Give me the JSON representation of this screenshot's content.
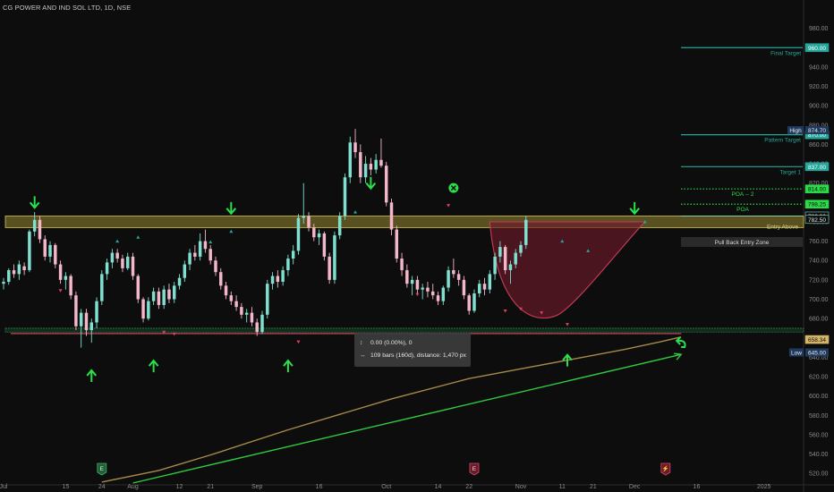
{
  "title": "CG POWER AND IND SOL LTD, 1D, NSE",
  "colors": {
    "bg": "#0d0d0d",
    "up": "#7fe0cf",
    "down": "#f4b6c9",
    "ma": "#a58a4a",
    "trend": "#2ecc40",
    "resistance": "#b8a53a",
    "support": "#1f5f36",
    "cup": "#6b1a2a",
    "arrow": "#29e04a",
    "target": "#26a69a",
    "poa": "#2bd94a"
  },
  "measure": {
    "line1": "0.00 (0.00%), 0",
    "line2": "109 bars (160d), distance: 1,470 px",
    "icon1": "measure-range-icon",
    "icon2": "measure-bars-icon"
  },
  "chart_data": {
    "type": "candlestick",
    "title": "CG POWER AND IND SOL LTD, 1D, NSE",
    "y_range": [
      510,
      1000
    ],
    "y_ticks": [
      520,
      540,
      560,
      580,
      600,
      620,
      640,
      660,
      680,
      700,
      720,
      740,
      760,
      780,
      800,
      820,
      840,
      860,
      880,
      900,
      920,
      940,
      960,
      980
    ],
    "x_labels": [
      "Jul",
      "15",
      "24",
      "Aug",
      "12",
      "21",
      "Sep",
      "16",
      "Oct",
      "14",
      "22",
      "Nov",
      "11",
      "21",
      "Dec",
      "16",
      "2025"
    ],
    "x_label_bars": [
      0,
      12,
      19,
      25,
      34,
      40,
      49,
      61,
      74,
      84,
      90,
      100,
      108,
      114,
      122,
      134,
      147
    ],
    "candle_start": 4,
    "candle_step": 5.78,
    "candles": [
      [
        716,
        722,
        710,
        718
      ],
      [
        718,
        732,
        715,
        730
      ],
      [
        730,
        736,
        722,
        726
      ],
      [
        726,
        740,
        720,
        736
      ],
      [
        734,
        738,
        725,
        730
      ],
      [
        730,
        772,
        728,
        770
      ],
      [
        770,
        790,
        765,
        782
      ],
      [
        782,
        786,
        758,
        762
      ],
      [
        762,
        766,
        740,
        744
      ],
      [
        744,
        760,
        738,
        756
      ],
      [
        756,
        758,
        732,
        736
      ],
      [
        736,
        740,
        716,
        720
      ],
      [
        720,
        728,
        710,
        724
      ],
      [
        724,
        726,
        700,
        704
      ],
      [
        704,
        708,
        668,
        672
      ],
      [
        672,
        690,
        650,
        686
      ],
      [
        686,
        690,
        662,
        668
      ],
      [
        668,
        680,
        655,
        676
      ],
      [
        676,
        702,
        670,
        698
      ],
      [
        698,
        730,
        694,
        726
      ],
      [
        726,
        742,
        720,
        738
      ],
      [
        738,
        752,
        732,
        748
      ],
      [
        748,
        752,
        738,
        742
      ],
      [
        742,
        746,
        728,
        732
      ],
      [
        732,
        748,
        730,
        744
      ],
      [
        744,
        748,
        720,
        724
      ],
      [
        724,
        726,
        696,
        700
      ],
      [
        700,
        702,
        676,
        680
      ],
      [
        680,
        702,
        678,
        698
      ],
      [
        698,
        712,
        694,
        708
      ],
      [
        708,
        712,
        690,
        694
      ],
      [
        694,
        714,
        690,
        710
      ],
      [
        710,
        716,
        696,
        700
      ],
      [
        700,
        718,
        696,
        714
      ],
      [
        714,
        726,
        710,
        722
      ],
      [
        722,
        740,
        718,
        736
      ],
      [
        736,
        752,
        730,
        748
      ],
      [
        748,
        756,
        740,
        744
      ],
      [
        744,
        768,
        740,
        760
      ],
      [
        760,
        772,
        748,
        752
      ],
      [
        752,
        756,
        736,
        740
      ],
      [
        740,
        744,
        724,
        728
      ],
      [
        728,
        732,
        710,
        714
      ],
      [
        714,
        718,
        700,
        704
      ],
      [
        704,
        708,
        694,
        698
      ],
      [
        698,
        704,
        688,
        692
      ],
      [
        692,
        696,
        680,
        684
      ],
      [
        684,
        690,
        676,
        686
      ],
      [
        686,
        692,
        672,
        676
      ],
      [
        676,
        680,
        662,
        666
      ],
      [
        666,
        688,
        664,
        684
      ],
      [
        684,
        720,
        680,
        716
      ],
      [
        716,
        728,
        710,
        724
      ],
      [
        724,
        730,
        712,
        718
      ],
      [
        718,
        734,
        714,
        730
      ],
      [
        730,
        746,
        724,
        742
      ],
      [
        742,
        756,
        736,
        750
      ],
      [
        750,
        788,
        746,
        784
      ],
      [
        784,
        820,
        778,
        786
      ],
      [
        786,
        790,
        770,
        774
      ],
      [
        774,
        778,
        760,
        764
      ],
      [
        764,
        772,
        756,
        768
      ],
      [
        768,
        770,
        740,
        744
      ],
      [
        744,
        748,
        716,
        720
      ],
      [
        720,
        770,
        716,
        766
      ],
      [
        766,
        790,
        762,
        786
      ],
      [
        786,
        830,
        782,
        826
      ],
      [
        826,
        868,
        820,
        862
      ],
      [
        862,
        876,
        846,
        852
      ],
      [
        852,
        860,
        820,
        826
      ],
      [
        826,
        848,
        820,
        840
      ],
      [
        840,
        846,
        828,
        834
      ],
      [
        834,
        850,
        830,
        844
      ],
      [
        844,
        866,
        836,
        838
      ],
      [
        838,
        842,
        796,
        800
      ],
      [
        800,
        804,
        766,
        772
      ],
      [
        772,
        776,
        738,
        742
      ],
      [
        742,
        748,
        724,
        730
      ],
      [
        730,
        736,
        712,
        716
      ],
      [
        716,
        724,
        704,
        720
      ],
      [
        720,
        724,
        706,
        710
      ],
      [
        710,
        716,
        700,
        712
      ],
      [
        712,
        718,
        702,
        708
      ],
      [
        708,
        716,
        700,
        704
      ],
      [
        704,
        708,
        694,
        698
      ],
      [
        698,
        714,
        694,
        712
      ],
      [
        712,
        734,
        708,
        730
      ],
      [
        730,
        742,
        722,
        726
      ],
      [
        726,
        730,
        714,
        720
      ],
      [
        720,
        724,
        700,
        704
      ],
      [
        704,
        706,
        684,
        688
      ],
      [
        688,
        710,
        686,
        706
      ],
      [
        706,
        720,
        702,
        716
      ],
      [
        716,
        722,
        704,
        710
      ],
      [
        710,
        730,
        706,
        726
      ],
      [
        726,
        748,
        720,
        744
      ],
      [
        744,
        760,
        738,
        754
      ],
      [
        754,
        756,
        726,
        730
      ],
      [
        730,
        740,
        716,
        736
      ],
      [
        736,
        752,
        732,
        748
      ],
      [
        748,
        760,
        744,
        756
      ],
      [
        756,
        786,
        752,
        782
      ]
    ],
    "moving_average": {
      "name": "",
      "points": [
        [
          19,
          511
        ],
        [
          30,
          523
        ],
        [
          40,
          539
        ],
        [
          55,
          565
        ],
        [
          75,
          597
        ],
        [
          90,
          618
        ],
        [
          100,
          628
        ],
        [
          110,
          638
        ],
        [
          120,
          648
        ],
        [
          127,
          656
        ],
        [
          131,
          661
        ]
      ]
    },
    "trendline": {
      "from": [
        25,
        510
      ],
      "to": [
        131,
        643
      ]
    },
    "levels": {
      "final_target": 960.0,
      "pattern_target": 870.0,
      "high": 874.7,
      "target_1": 837.0,
      "poa_2": 814.0,
      "poa": 798.25,
      "entry_top": 786.0,
      "current": 782.5,
      "entry_zone": [
        774,
        786
      ],
      "support_zone": [
        666,
        670
      ],
      "support_line": 664.5,
      "ma_value": 658.34,
      "low": 645.0
    },
    "labels": {
      "final_target": "Final Target",
      "pattern_target": "Pattern Target",
      "target_1": "Target 1",
      "poa_2": "POA -- 2",
      "poa": "POA",
      "entry": "Entry Above",
      "pullback": "Pull Back Entry Zone"
    },
    "price_tags": {
      "final_target": "960.00",
      "high_label": "High",
      "high": "874.70",
      "pattern_target": "870.00",
      "target_1": "837.00",
      "poa_2": "814.00",
      "poa": "798.25",
      "entry_top": "786.00",
      "current": "782.50",
      "ma": "658.34",
      "low_label": "Low",
      "low": "645.00"
    },
    "cup": {
      "start_bar": 94,
      "bottom_bar": 107,
      "end_bar": 124,
      "top": 780,
      "bottom": 688
    },
    "down_arrows": [
      [
        6,
        800
      ],
      [
        44,
        794
      ],
      [
        71,
        820
      ],
      [
        122,
        794
      ]
    ],
    "up_arrows": [
      [
        17,
        621
      ],
      [
        29,
        631
      ],
      [
        55,
        631
      ],
      [
        109,
        637
      ]
    ],
    "markers_up": [
      [
        22,
        760
      ],
      [
        26,
        764
      ],
      [
        40,
        759
      ],
      [
        44,
        770
      ],
      [
        68,
        790
      ],
      [
        108,
        760
      ],
      [
        113,
        750
      ],
      [
        124,
        780
      ]
    ],
    "markers_down": [
      [
        11,
        709
      ],
      [
        31,
        666
      ],
      [
        33,
        664
      ],
      [
        57,
        656
      ],
      [
        80,
        705
      ],
      [
        86,
        797
      ],
      [
        97,
        688
      ],
      [
        100,
        690
      ],
      [
        104,
        686
      ],
      [
        109,
        674
      ]
    ],
    "circle_marker": [
      87,
      815
    ],
    "event_badges": [
      [
        19,
        "E"
      ],
      [
        91,
        "E"
      ],
      [
        128,
        "lightning"
      ]
    ],
    "curl_arrow": [
      131,
      657
    ]
  }
}
